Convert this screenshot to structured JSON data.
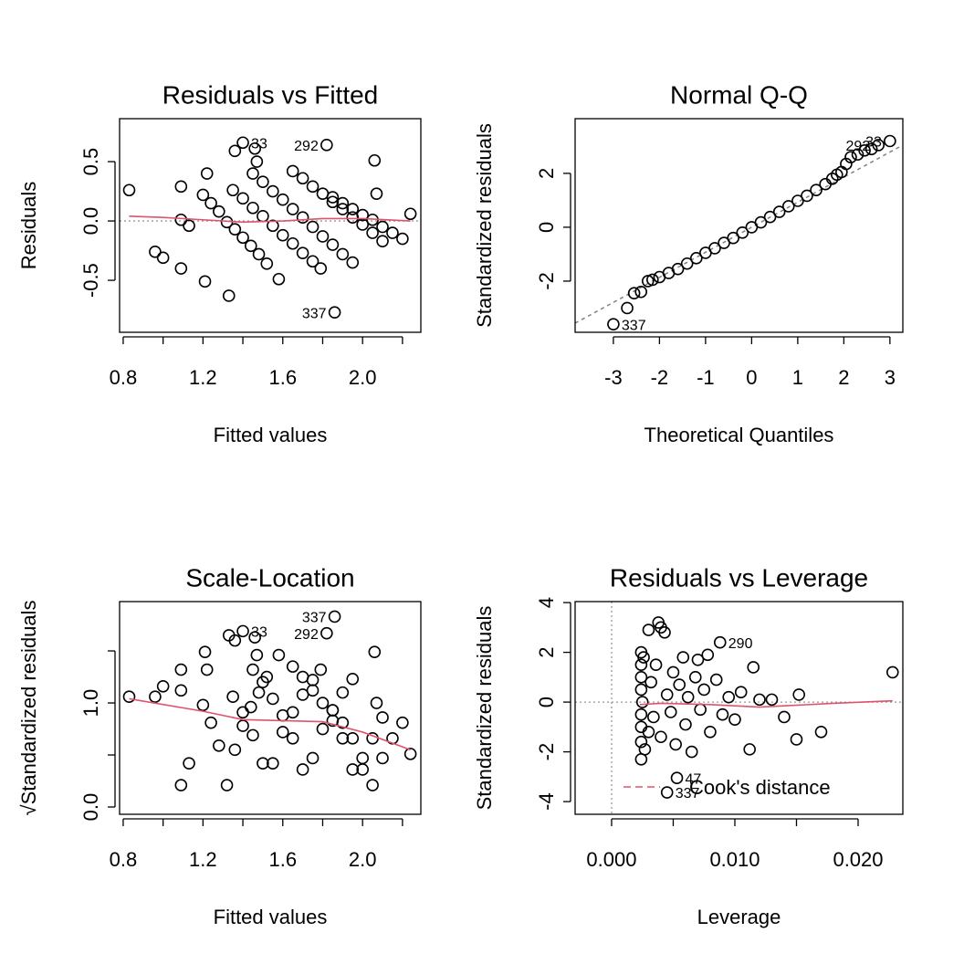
{
  "chart_data": [
    {
      "type": "scatter",
      "title": "Residuals vs Fitted",
      "xlabel": "Fitted values",
      "ylabel": "Residuals",
      "point_color": "#000000",
      "x": [
        1.2,
        1.24,
        1.28,
        1.32,
        1.36,
        1.4,
        1.44,
        1.48,
        1.52,
        1.35,
        1.4,
        1.45,
        1.5,
        1.55,
        1.6,
        1.65,
        1.7,
        1.75,
        1.79,
        1.45,
        1.5,
        1.55,
        1.6,
        1.65,
        1.7,
        1.75,
        1.8,
        1.85,
        1.9,
        1.95,
        1.65,
        1.7,
        1.75,
        1.8,
        1.85,
        1.9,
        1.95,
        2.0,
        2.05,
        2.1,
        1.85,
        1.9,
        1.95,
        2.0,
        2.05,
        2.1,
        2.15,
        2.2,
        0.83,
        0.96,
        1.0,
        1.09,
        1.09,
        1.21,
        1.33,
        1.36,
        1.46,
        2.06,
        2.24,
        1.09,
        1.13,
        1.22,
        1.47,
        1.58,
        2.07
      ],
      "y": [
        0.22,
        0.15,
        0.08,
        -0.01,
        -0.07,
        -0.14,
        -0.21,
        -0.28,
        -0.36,
        0.26,
        0.19,
        0.11,
        0.04,
        -0.04,
        -0.12,
        -0.19,
        -0.27,
        -0.34,
        -0.4,
        0.4,
        0.33,
        0.25,
        0.18,
        0.1,
        0.03,
        -0.05,
        -0.13,
        -0.2,
        -0.28,
        -0.35,
        0.42,
        0.36,
        0.29,
        0.23,
        0.16,
        0.1,
        0.03,
        -0.03,
        -0.1,
        -0.17,
        0.2,
        0.15,
        0.1,
        0.05,
        0.01,
        -0.05,
        -0.1,
        -0.15,
        0.26,
        -0.26,
        -0.31,
        -0.4,
        0.29,
        -0.51,
        -0.63,
        0.59,
        0.61,
        0.51,
        0.06,
        0.01,
        -0.04,
        0.4,
        0.5,
        -0.49,
        0.23
      ],
      "labeled_points": [
        {
          "x": 1.4,
          "y": 0.66,
          "label": "33"
        },
        {
          "x": 1.82,
          "y": 0.64,
          "label": "292"
        },
        {
          "x": 1.86,
          "y": -0.77,
          "label": "337"
        }
      ],
      "smooth": {
        "color": "#df536b",
        "x": [
          0.83,
          1.0,
          1.2,
          1.4,
          1.6,
          1.8,
          2.0,
          2.24
        ],
        "y": [
          0.04,
          0.03,
          0.01,
          -0.01,
          0.0,
          0.02,
          0.02,
          0.0
        ]
      },
      "hlines": [
        0
      ],
      "refline_color": "#999999",
      "xlim": [
        0.782,
        2.292
      ],
      "ylim": [
        -0.938,
        0.862
      ],
      "xticks": [
        0.8,
        {
          "value": 1,
          "label": null
        },
        1.2,
        {
          "value": 1.4,
          "label": null
        },
        1.6,
        {
          "value": 1.8,
          "label": null
        },
        {
          "value": 2,
          "label": "2.0"
        },
        {
          "value": 2.2,
          "label": null
        }
      ],
      "yticks": [
        -0.5,
        {
          "value": 0,
          "label": "0.0"
        },
        0.5
      ]
    },
    {
      "type": "scatter",
      "title": "Normal Q-Q",
      "xlabel": "Theoretical Quantiles",
      "ylabel": "Standardized residuals",
      "point_color": "#000000",
      "x": [
        -2.7,
        -2.55,
        -2.4,
        -2.25,
        -2.15,
        -2.0,
        -1.8,
        -1.6,
        -1.4,
        -1.2,
        -1.0,
        -0.8,
        -0.6,
        -0.4,
        -0.2,
        0,
        0.2,
        0.4,
        0.6,
        0.8,
        1.0,
        1.2,
        1.4,
        1.6,
        1.75,
        1.85,
        1.95,
        2.05,
        2.15,
        2.3,
        2.45,
        2.6
      ],
      "y": [
        -3.0,
        -2.45,
        -2.4,
        -2.0,
        -1.95,
        -1.85,
        -1.7,
        -1.55,
        -1.35,
        -1.15,
        -0.95,
        -0.78,
        -0.58,
        -0.4,
        -0.2,
        0,
        0.18,
        0.38,
        0.57,
        0.78,
        0.98,
        1.17,
        1.38,
        1.6,
        1.8,
        1.95,
        2.05,
        2.35,
        2.6,
        2.7,
        2.85,
        2.9
      ],
      "labeled_points": [
        {
          "x": -3.0,
          "y": -3.6,
          "label": "337"
        },
        {
          "x": 2.75,
          "y": 3.05,
          "label": "292"
        },
        {
          "x": 3.0,
          "y": 3.2,
          "label": "33"
        }
      ],
      "abline": {
        "intercept": 0,
        "slope": 0.93,
        "color": "#808080"
      },
      "xlim": [
        -3.83,
        3.28
      ],
      "ylim": [
        -3.9,
        4.03
      ],
      "xticks": [
        -3,
        -2,
        -1,
        0,
        1,
        2,
        3
      ],
      "yticks": [
        -2,
        0,
        2
      ]
    },
    {
      "type": "scatter",
      "title": "Scale-Location",
      "xlabel": "Fitted values",
      "ylabel": "√Standardized residuals",
      "point_color": "#000000",
      "x": [
        1.2,
        1.24,
        1.28,
        1.32,
        1.36,
        1.4,
        1.44,
        1.48,
        1.52,
        1.35,
        1.4,
        1.45,
        1.5,
        1.55,
        1.6,
        1.65,
        1.7,
        1.75,
        1.79,
        1.45,
        1.5,
        1.55,
        1.6,
        1.65,
        1.7,
        1.75,
        1.8,
        1.85,
        1.9,
        1.95,
        1.65,
        1.7,
        1.75,
        1.8,
        1.85,
        1.9,
        1.95,
        2.0,
        2.05,
        2.1,
        1.85,
        1.9,
        1.95,
        2.0,
        2.05,
        2.1,
        2.15,
        2.2,
        0.83,
        0.96,
        1.0,
        1.09,
        1.09,
        1.21,
        1.33,
        1.36,
        1.46,
        2.06,
        2.24,
        1.09,
        1.13,
        1.22,
        1.47,
        1.58,
        2.07
      ],
      "y": [
        0.98,
        0.81,
        0.59,
        0.21,
        0.55,
        0.78,
        0.96,
        1.1,
        1.25,
        1.06,
        0.91,
        0.69,
        0.42,
        0.42,
        0.72,
        0.91,
        1.08,
        1.22,
        1.32,
        1.32,
        1.2,
        1.04,
        0.88,
        0.66,
        0.36,
        0.47,
        0.75,
        0.93,
        1.1,
        1.23,
        1.35,
        1.25,
        1.12,
        1.0,
        0.83,
        0.66,
        0.36,
        0.36,
        0.66,
        0.86,
        0.93,
        0.81,
        0.66,
        0.47,
        0.21,
        0.47,
        0.66,
        0.81,
        1.06,
        1.06,
        1.16,
        1.32,
        1.12,
        1.49,
        1.65,
        1.6,
        1.63,
        1.49,
        0.51,
        0.21,
        0.42,
        1.32,
        1.46,
        1.46,
        1.0
      ],
      "labeled_points": [
        {
          "x": 1.4,
          "y": 1.69,
          "label": "33"
        },
        {
          "x": 1.82,
          "y": 1.67,
          "label": "292"
        },
        {
          "x": 1.86,
          "y": 1.83,
          "label": "337"
        }
      ],
      "smooth": {
        "color": "#df536b",
        "x": [
          0.83,
          1.2,
          1.4,
          1.6,
          1.8,
          2.0,
          2.24
        ],
        "y": [
          1.04,
          0.92,
          0.84,
          0.83,
          0.82,
          0.72,
          0.55
        ]
      },
      "xlim": [
        0.782,
        2.292
      ],
      "ylim": [
        -0.07,
        1.974
      ],
      "xticks": [
        0.8,
        {
          "value": 1,
          "label": null
        },
        1.2,
        {
          "value": 1.4,
          "label": null
        },
        1.6,
        {
          "value": 1.8,
          "label": null
        },
        {
          "value": 2,
          "label": "2.0"
        },
        {
          "value": 2.2,
          "label": null
        }
      ],
      "yticks": [
        {
          "value": 0,
          "label": "0.0"
        },
        {
          "value": 0.5,
          "label": null
        },
        {
          "value": 1,
          "label": "1.0"
        },
        {
          "value": 1.5,
          "label": null
        }
      ]
    },
    {
      "type": "scatter",
      "title": "Residuals vs Leverage",
      "xlabel": "Leverage",
      "ylabel": "Standardized residuals",
      "point_color": "#000000",
      "x": [
        0.0024,
        0.0024,
        0.0024,
        0.0024,
        0.0024,
        0.0024,
        0.0024,
        0.0024,
        0.0025,
        0.0026,
        0.0027,
        0.003,
        0.003,
        0.0032,
        0.0034,
        0.0036,
        0.0038,
        0.004,
        0.004,
        0.0043,
        0.0045,
        0.0048,
        0.005,
        0.0052,
        0.0055,
        0.0058,
        0.006,
        0.0062,
        0.0065,
        0.0068,
        0.007,
        0.0072,
        0.0075,
        0.0078,
        0.008,
        0.0085,
        0.009,
        0.0095,
        0.01,
        0.0105,
        0.0112,
        0.0115,
        0.012,
        0.013,
        0.014,
        0.015,
        0.0152,
        0.017,
        0.0228
      ],
      "y": [
        2.0,
        1.5,
        1.0,
        0.5,
        -0.5,
        -1.0,
        -1.6,
        -2.3,
        0.0,
        1.8,
        -1.9,
        2.9,
        -1.2,
        0.8,
        -0.6,
        1.5,
        3.2,
        3.0,
        -1.4,
        2.8,
        0.3,
        -0.4,
        1.2,
        -1.7,
        0.7,
        1.8,
        -0.9,
        0.2,
        -2.0,
        1.0,
        1.7,
        -0.3,
        0.5,
        1.9,
        -1.2,
        0.9,
        -0.5,
        0.2,
        -0.7,
        0.4,
        -1.9,
        1.4,
        0.1,
        0.1,
        -0.6,
        -1.5,
        0.3,
        -1.2,
        1.2
      ],
      "labeled_points": [
        {
          "x": 0.0088,
          "y": 2.4,
          "label": "290"
        },
        {
          "x": 0.0053,
          "y": -3.05,
          "label": "47"
        },
        {
          "x": 0.0045,
          "y": -3.63,
          "label": "337"
        }
      ],
      "smooth": {
        "color": "#df536b",
        "x": [
          0.0023,
          0.004,
          0.008,
          0.012,
          0.014,
          0.018,
          0.0228
        ],
        "y": [
          -0.1,
          -0.05,
          -0.1,
          -0.2,
          -0.15,
          -0.05,
          0.05
        ]
      },
      "hlines": [
        0
      ],
      "vlines": [
        0
      ],
      "refline_color": "#999999",
      "legend": {
        "label": "Cook's distance",
        "color": "#df536b",
        "position": "bottom left"
      },
      "xlim": [
        -0.00296,
        0.02363
      ],
      "ylim": [
        -4.51,
        4.04
      ],
      "xticks": [
        {
          "value": 0,
          "label": "0.000"
        },
        {
          "value": 0.005,
          "label": null
        },
        {
          "value": 0.01,
          "label": "0.010"
        },
        {
          "value": 0.015,
          "label": null
        },
        {
          "value": 0.02,
          "label": "0.020"
        }
      ],
      "yticks": [
        -4,
        -2,
        0,
        2,
        4
      ]
    }
  ]
}
